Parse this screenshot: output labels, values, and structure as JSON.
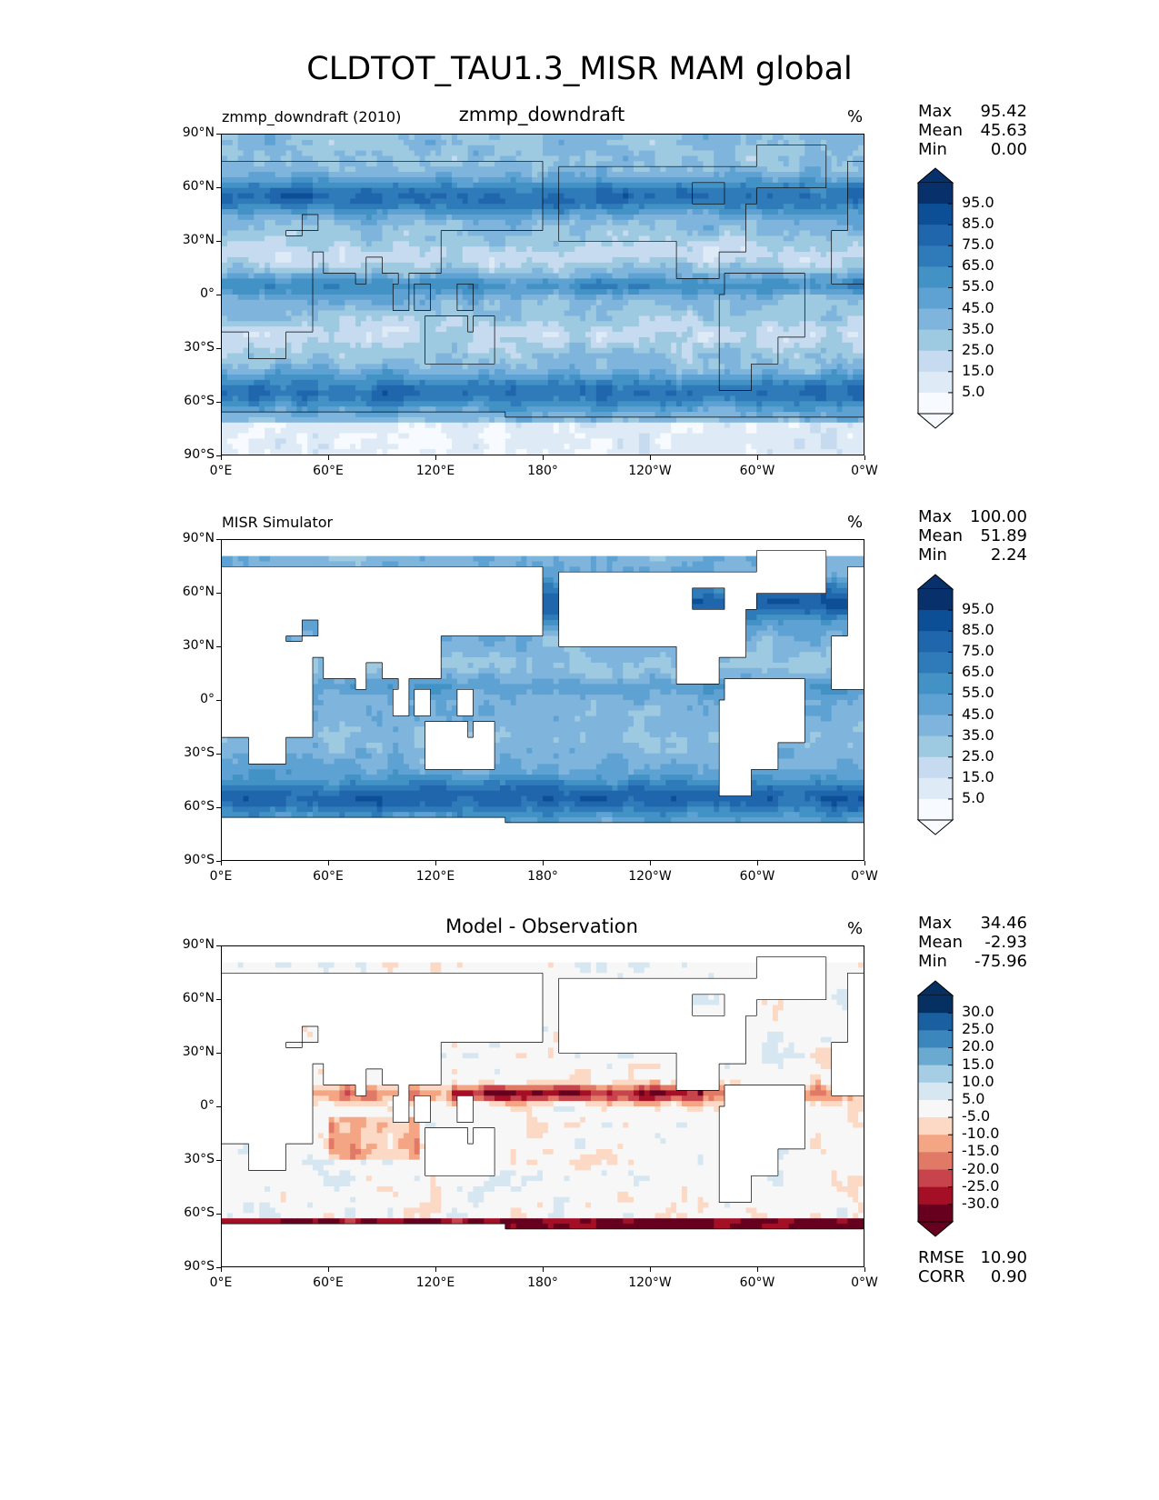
{
  "figure_title": "CLDTOT_TAU1.3_MISR MAM global",
  "colors": {
    "blues": [
      "#f7fbff",
      "#deebf7",
      "#c6dbef",
      "#9ecae1",
      "#7fb5dc",
      "#5ea2d3",
      "#4292c6",
      "#2f7bba",
      "#1f66ad",
      "#0c4f97",
      "#08306b"
    ],
    "diverging": [
      "#67001f",
      "#a50f26",
      "#c8444c",
      "#e07a66",
      "#f4a584",
      "#fbd9c5",
      "#f7f7f7",
      "#d6e7f1",
      "#a5cde3",
      "#6aaad0",
      "#3a86bd",
      "#1a5fa0",
      "#053061"
    ],
    "land": "#ffffff",
    "coast": "#000000"
  },
  "x_ticks": [
    "0°E",
    "60°E",
    "120°E",
    "180°",
    "120°W",
    "60°W",
    "0°W"
  ],
  "y_ticks": [
    "90°N",
    "60°N",
    "30°N",
    "0°",
    "30°S",
    "60°S",
    "90°S"
  ],
  "panels": [
    {
      "left_title": "zmmp_downdraft (2010)",
      "center_title": "zmmp_downdraft",
      "units": "%",
      "stats": {
        "max_label": "Max",
        "max": "95.42",
        "mean_label": "Mean",
        "mean": "45.63",
        "min_label": "Min",
        "min": "0.00"
      },
      "colorbar": {
        "labels": [
          "95.0",
          "85.0",
          "75.0",
          "65.0",
          "55.0",
          "45.0",
          "35.0",
          "25.0",
          "15.0",
          "5.0"
        ]
      },
      "field": "model"
    },
    {
      "left_title": "MISR Simulator",
      "center_title": "",
      "units": "%",
      "stats": {
        "max_label": "Max",
        "max": "100.00",
        "mean_label": "Mean",
        "mean": "51.89",
        "min_label": "Min",
        "min": "2.24"
      },
      "colorbar": {
        "labels": [
          "95.0",
          "85.0",
          "75.0",
          "65.0",
          "55.0",
          "45.0",
          "35.0",
          "25.0",
          "15.0",
          "5.0"
        ]
      },
      "field": "obs"
    },
    {
      "left_title": "",
      "center_title": "Model - Observation",
      "units": "%",
      "stats": {
        "max_label": "Max",
        "max": "34.46",
        "mean_label": "Mean",
        "mean": "-2.93",
        "min_label": "Min",
        "min": "-75.96"
      },
      "colorbar": {
        "labels": [
          "30.0",
          "25.0",
          "20.0",
          "15.0",
          "10.0",
          "5.0",
          "-5.0",
          "-10.0",
          "-15.0",
          "-20.0",
          "-25.0",
          "-30.0"
        ]
      },
      "extra_stats": {
        "rmse_label": "RMSE",
        "rmse": "10.90",
        "corr_label": "CORR",
        "corr": "0.90"
      },
      "field": "diff"
    }
  ]
}
